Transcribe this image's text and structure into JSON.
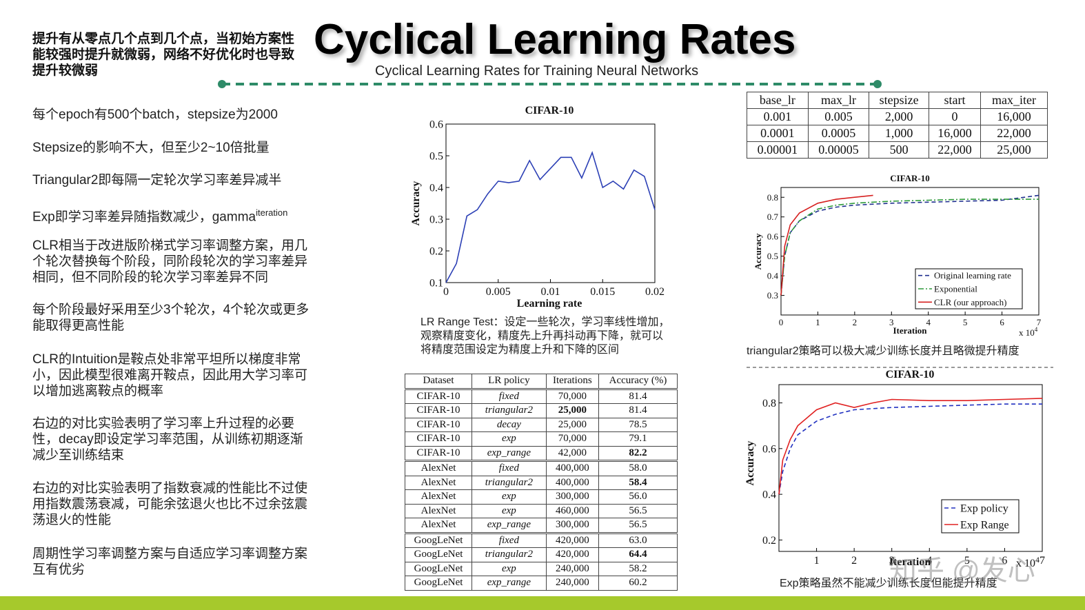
{
  "header": {
    "lead": "提升有从零点几个点到几个点，当初始方案性能较强时提升就微弱，网络不好优化时也导致提升较微弱",
    "title": "Cyclical Learning Rates",
    "subtitle": "Cyclical Learning Rates for Training Neural Networks"
  },
  "paragraphs": [
    "每个epoch有500个batch，stepsize为2000",
    "Stepsize的影响不大，但至少2~10倍批量",
    "Triangular2即每隔一定轮次学习率差异减半",
    {
      "text": "Exp即学习率差异随指数减少，gamma",
      "sup": "iteration"
    },
    "CLR相当于改进版阶梯式学习率调整方案，用几个轮次替换每个阶段，同阶段轮次的学习率差异相同，但不同阶段的轮次学习率差异不同",
    "每个阶段最好采用至少3个轮次，4个轮次或更多能取得更高性能",
    "CLR的Intuition是鞍点处非常平坦所以梯度非常小，因此模型很难离开鞍点，因此用大学习率可以增加逃离鞍点的概率",
    "右边的对比实验表明了学习率上升过程的必要性，decay即设定学习率范围，从训练初期逐渐减少至训练结束",
    "右边的对比实验表明了指数衰减的性能比不过使用指数震荡衰减，可能余弦退火也比不过余弦震荡退火的性能",
    "周期性学习率调整方案与自适应学习率调整方案互有优劣"
  ],
  "chart_data": [
    {
      "type": "line",
      "title": "CIFAR-10",
      "x_label": "Learning rate",
      "y_label": "Accuracy",
      "x": [
        0,
        0.001,
        0.002,
        0.003,
        0.004,
        0.005,
        0.006,
        0.007,
        0.008,
        0.009,
        0.01,
        0.011,
        0.012,
        0.013,
        0.014,
        0.015,
        0.016,
        0.017,
        0.018,
        0.019,
        0.02
      ],
      "series": [
        {
          "color": "#2b3fb5",
          "style": "solid",
          "values": [
            0.1,
            0.16,
            0.31,
            0.33,
            0.38,
            0.42,
            0.415,
            0.42,
            0.485,
            0.425,
            0.46,
            0.495,
            0.495,
            0.43,
            0.51,
            0.4,
            0.42,
            0.395,
            0.455,
            0.435,
            0.33
          ]
        }
      ],
      "xlim": [
        0,
        0.02
      ],
      "ylim": [
        0.1,
        0.6
      ],
      "xticks": [
        0,
        0.005,
        0.01,
        0.015,
        0.02
      ],
      "yticks": [
        0.1,
        0.2,
        0.3,
        0.4,
        0.5,
        0.6
      ]
    },
    {
      "type": "line",
      "title": "CIFAR-10",
      "x_label": "Iteration",
      "y_label": "Accuracy",
      "x_scale": {
        "text": "x 10",
        "sup": "4"
      },
      "x": [
        0,
        0.1,
        0.25,
        0.5,
        1,
        1.5,
        2,
        2.5,
        3,
        4,
        5,
        6,
        7
      ],
      "series": [
        {
          "name": "Original learning rate",
          "color": "#1f2f8f",
          "style": "dashed",
          "values": [
            0.3,
            0.5,
            0.62,
            0.68,
            0.73,
            0.75,
            0.76,
            0.765,
            0.77,
            0.775,
            0.78,
            0.785,
            0.81
          ]
        },
        {
          "name": "Exponential",
          "color": "#2e9a3a",
          "style": "dashdot",
          "values": [
            0.3,
            0.5,
            0.62,
            0.68,
            0.74,
            0.76,
            0.77,
            0.775,
            0.78,
            0.785,
            0.79,
            0.79,
            0.79
          ]
        },
        {
          "name": "CLR (our approach)",
          "color": "#d62020",
          "style": "solid",
          "values": [
            0.3,
            0.55,
            0.66,
            0.72,
            0.77,
            0.79,
            0.8,
            0.81,
            null,
            null,
            null,
            null,
            null
          ]
        }
      ],
      "xlim": [
        0,
        7
      ],
      "ylim": [
        0.2,
        0.85
      ],
      "xticks": [
        0,
        1,
        2,
        3,
        4,
        5,
        6,
        7
      ],
      "yticks": [
        0.3,
        0.4,
        0.5,
        0.6,
        0.7,
        0.8
      ],
      "legend": "lower right"
    },
    {
      "type": "line",
      "title": "CIFAR-10",
      "x_label": "Iteration",
      "y_label": "Accuracy",
      "x_scale": {
        "text": "x 10",
        "sup": "4"
      },
      "x": [
        0,
        0.1,
        0.3,
        0.5,
        1,
        1.5,
        2,
        2.5,
        3,
        4,
        5,
        6,
        7
      ],
      "series": [
        {
          "name": "Exp policy",
          "color": "#2030c0",
          "style": "dashed",
          "values": [
            0.4,
            0.5,
            0.6,
            0.66,
            0.72,
            0.75,
            0.77,
            0.775,
            0.78,
            0.785,
            0.79,
            0.795,
            0.795
          ]
        },
        {
          "name": "Exp Range",
          "color": "#e02020",
          "style": "solid",
          "values": [
            0.4,
            0.55,
            0.64,
            0.7,
            0.77,
            0.8,
            0.78,
            0.8,
            0.815,
            0.81,
            0.81,
            0.815,
            0.82
          ]
        }
      ],
      "xlim": [
        0,
        7
      ],
      "ylim": [
        0.15,
        0.88
      ],
      "xticks": [
        1,
        2,
        3,
        4,
        5,
        6,
        7
      ],
      "yticks": [
        0.2,
        0.4,
        0.6,
        0.8
      ],
      "legend": "lower right"
    }
  ],
  "captions": [
    "LR Range Test：设定一些轮次，学习率线性增加，观察精度变化，精度先上升再抖动再下降，就可以将精度范围设定为精度上升和下降的区间",
    "triangular2策略可以极大减少训练长度并且略微提升精度",
    "Exp策略虽然不能减少训练长度但能提升精度"
  ],
  "params_table": {
    "header": [
      "base_lr",
      "max_lr",
      "stepsize",
      "start",
      "max_iter"
    ],
    "rows": [
      [
        "0.001",
        "0.005",
        "2,000",
        "0",
        "16,000"
      ],
      [
        "0.0001",
        "0.0005",
        "1,000",
        "16,000",
        "22,000"
      ],
      [
        "0.00001",
        "0.00005",
        "500",
        "22,000",
        "25,000"
      ]
    ]
  },
  "results_table": {
    "header": [
      "Dataset",
      "LR policy",
      "Iterations",
      "Accuracy (%)"
    ],
    "groups": [
      [
        [
          "CIFAR-10",
          "fixed",
          "70,000",
          "81.4"
        ],
        [
          "CIFAR-10",
          "triangular2",
          "25,000",
          "81.4"
        ],
        [
          "CIFAR-10",
          "decay",
          "25,000",
          "78.5"
        ],
        [
          "CIFAR-10",
          "exp",
          "70,000",
          "79.1"
        ],
        [
          "CIFAR-10",
          "exp_range",
          "42,000",
          "82.2"
        ]
      ],
      [
        [
          "AlexNet",
          "fixed",
          "400,000",
          "58.0"
        ],
        [
          "AlexNet",
          "triangular2",
          "400,000",
          "58.4"
        ],
        [
          "AlexNet",
          "exp",
          "300,000",
          "56.0"
        ],
        [
          "AlexNet",
          "exp",
          "460,000",
          "56.5"
        ],
        [
          "AlexNet",
          "exp_range",
          "300,000",
          "56.5"
        ]
      ],
      [
        [
          "GoogLeNet",
          "fixed",
          "420,000",
          "63.0"
        ],
        [
          "GoogLeNet",
          "triangular2",
          "420,000",
          "64.4"
        ],
        [
          "GoogLeNet",
          "exp",
          "240,000",
          "58.2"
        ],
        [
          "GoogLeNet",
          "exp_range",
          "240,000",
          "60.2"
        ]
      ]
    ],
    "bold_cells": [
      [
        0,
        1,
        2
      ],
      [
        0,
        4,
        3
      ],
      [
        1,
        1,
        3
      ],
      [
        2,
        1,
        3
      ]
    ]
  },
  "watermark": "知乎 @发心"
}
